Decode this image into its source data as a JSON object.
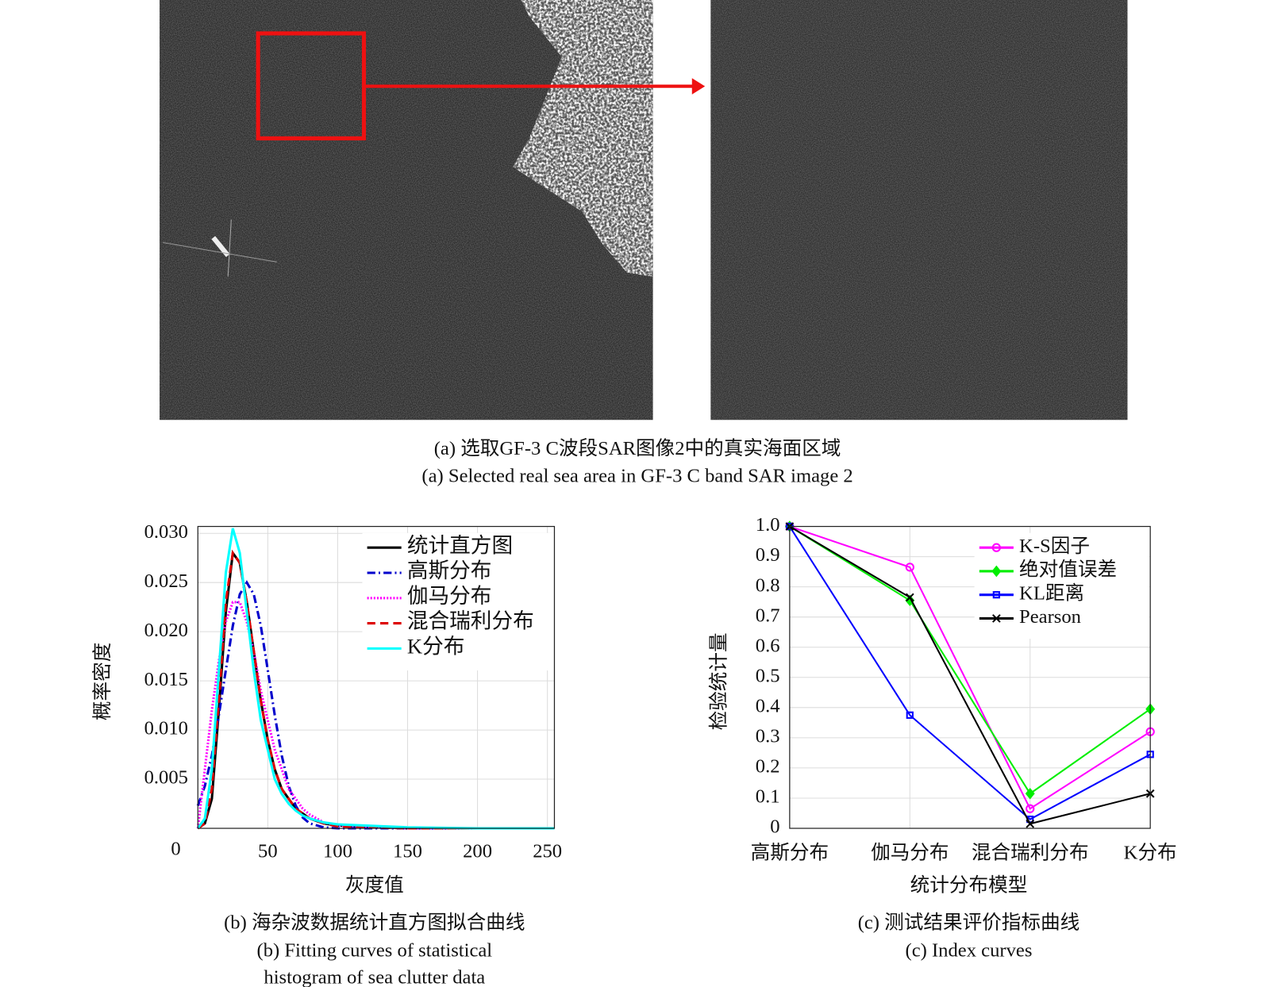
{
  "panel_a": {
    "caption_cn": "(a) 选取GF-3 C波段SAR图像2中的真实海面区域",
    "caption_en": "(a) Selected real sea area in GF-3 C band SAR image 2"
  },
  "chart_data": [
    {
      "type": "line",
      "xlabel": "灰度值",
      "ylabel": "概率密度",
      "caption_cn": "(b) 海杂波数据统计直方图拟合曲线",
      "caption_en": [
        "(b) Fitting curves of statistical",
        "histogram of sea clutter data"
      ],
      "x": [
        0,
        5,
        10,
        15,
        20,
        25,
        30,
        35,
        40,
        45,
        50,
        55,
        60,
        65,
        70,
        75,
        80,
        90,
        100,
        150,
        200,
        255
      ],
      "xlim": [
        0,
        255
      ],
      "xticks": [
        0,
        50,
        100,
        150,
        200,
        250
      ],
      "ylim": [
        0,
        0.0307
      ],
      "yticks": [
        0.005,
        {
          "value": 0.01,
          "label": "0.010"
        },
        0.015,
        {
          "value": 0.02,
          "label": "0.020"
        },
        0.025,
        {
          "value": 0.03,
          "label": "0.030"
        }
      ],
      "grid": true,
      "legend": "upper right",
      "series": [
        {
          "name": "统计直方图",
          "color": "#000000",
          "style": "solid",
          "values": [
            0,
            0.0005,
            0.003,
            0.012,
            0.022,
            0.028,
            0.027,
            0.023,
            0.018,
            0.013,
            0.009,
            0.006,
            0.004,
            0.003,
            0.002,
            0.0015,
            0.001,
            0.0005,
            0.0003,
            0,
            0,
            0
          ]
        },
        {
          "name": "高斯分布",
          "color": "#0000cc",
          "style": "dashdot",
          "values": [
            0.0023,
            0.0043,
            0.0074,
            0.0115,
            0.0161,
            0.0206,
            0.0238,
            0.025,
            0.0238,
            0.0206,
            0.0161,
            0.0115,
            0.0074,
            0.0043,
            0.0023,
            0.0011,
            0.0005,
            0.0001,
            0,
            0,
            0,
            0
          ]
        },
        {
          "name": "伽马分布",
          "color": "#ff00ff",
          "style": "dotted",
          "values": [
            0,
            0.006,
            0.012,
            0.017,
            0.021,
            0.023,
            0.023,
            0.021,
            0.018,
            0.014,
            0.011,
            0.008,
            0.006,
            0.004,
            0.003,
            0.002,
            0.0014,
            0.0006,
            0.0003,
            0,
            0,
            0
          ]
        },
        {
          "name": "混合瑞利分布",
          "color": "#dd0000",
          "style": "dashed",
          "values": [
            0,
            0.0005,
            0.004,
            0.013,
            0.023,
            0.028,
            0.027,
            0.023,
            0.018,
            0.013,
            0.009,
            0.006,
            0.004,
            0.003,
            0.002,
            0.0015,
            0.001,
            0.0005,
            0.0002,
            0,
            0,
            0
          ]
        },
        {
          "name": "K分布",
          "color": "#00ffff",
          "style": "solid",
          "values": [
            0,
            0.001,
            0.006,
            0.016,
            0.026,
            0.0305,
            0.028,
            0.022,
            0.016,
            0.011,
            0.008,
            0.005,
            0.0035,
            0.0025,
            0.0018,
            0.0013,
            0.001,
            0.0006,
            0.0004,
            0.0001,
            0,
            0
          ]
        }
      ]
    },
    {
      "type": "line",
      "xlabel": "统计分布模型",
      "ylabel": "检验统计量",
      "caption_cn": "(c) 测试结果评价指标曲线",
      "caption_en": [
        "(c) Index curves"
      ],
      "categories": [
        "高斯分布",
        "伽马分布",
        "混合瑞利分布",
        "K分布"
      ],
      "ylim": [
        0,
        1
      ],
      "yticks": [
        0,
        0.1,
        0.2,
        0.3,
        0.4,
        0.5,
        0.6,
        0.7,
        0.8,
        0.9,
        {
          "value": 1,
          "label": "1.0"
        }
      ],
      "grid": true,
      "legend": "upper right",
      "series": [
        {
          "name": "K-S因子",
          "color": "#ff00ff",
          "style": "solid",
          "marker": "circle",
          "values": [
            1,
            0.865,
            0.065,
            0.32
          ]
        },
        {
          "name": "绝对值误差",
          "color": "#00ee00",
          "style": "solid",
          "marker": "diamond",
          "values": [
            1,
            0.755,
            0.115,
            0.395
          ]
        },
        {
          "name": "KL距离",
          "color": "#0000ff",
          "style": "solid",
          "marker": "square",
          "values": [
            1,
            0.375,
            0.03,
            0.245
          ]
        },
        {
          "name": "Pearson",
          "color": "#000000",
          "style": "solid",
          "marker": "x",
          "values": [
            1,
            0.765,
            0.015,
            0.115
          ]
        }
      ]
    }
  ]
}
